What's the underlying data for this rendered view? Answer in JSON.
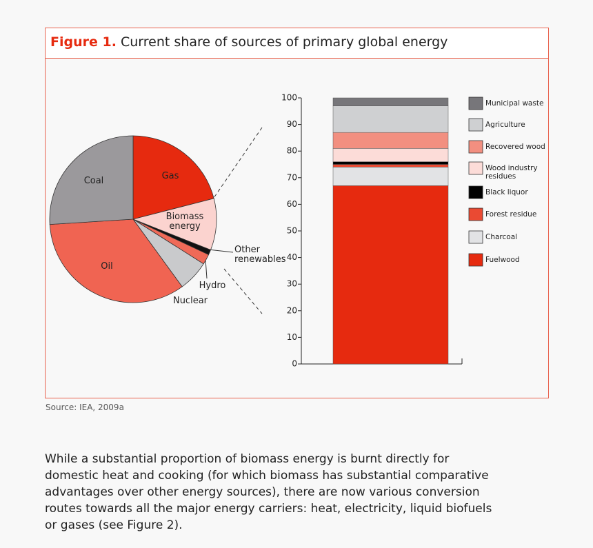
{
  "figure": {
    "label": "Figure 1.",
    "title": "Current share of sources of primary global energy",
    "source": "Source: IEA, 2009a"
  },
  "chart_data": [
    {
      "type": "pie",
      "categories": [
        "Gas",
        "Biomass energy",
        "Other renewables",
        "Hydro",
        "Nuclear",
        "Oil",
        "Coal"
      ],
      "values": [
        21,
        10,
        1,
        2,
        6,
        34,
        26
      ],
      "colors": [
        "#e62a0f",
        "#fbd3cf",
        "#111111",
        "#ef6a58",
        "#c9cacc",
        "#f06452",
        "#9b999c"
      ]
    },
    {
      "type": "stacked_bar",
      "series": [
        {
          "name": "Fuelwood",
          "color": "#e62a0f",
          "values": [
            67
          ]
        },
        {
          "name": "Charcoal",
          "color": "#e2e3e5",
          "values": [
            7
          ]
        },
        {
          "name": "Forest residue",
          "color": "#ea4a33",
          "values": [
            1
          ]
        },
        {
          "name": "Black liquor",
          "color": "#000000",
          "values": [
            1
          ]
        },
        {
          "name": "Wood industry residues",
          "color": "#fcdcd8",
          "values": [
            5
          ]
        },
        {
          "name": "Recovered wood",
          "color": "#f28f80",
          "values": [
            6
          ]
        },
        {
          "name": "Agriculture",
          "color": "#cfd0d2",
          "values": [
            10
          ]
        },
        {
          "name": "Municipal waste",
          "color": "#77767a",
          "values": [
            3
          ]
        }
      ],
      "ylim": [
        0,
        100
      ],
      "yticks": [
        0,
        10,
        20,
        30,
        40,
        50,
        60,
        70,
        80,
        90,
        100
      ]
    }
  ],
  "paragraph": "While a substantial proportion of biomass energy is burnt directly for domestic heat and cooking (for which biomass has substantial comparative advantages over other energy sources), there are now various conversion routes towards all the major energy carriers: heat, electricity, liquid biofuels or gases (see Figure 2)."
}
